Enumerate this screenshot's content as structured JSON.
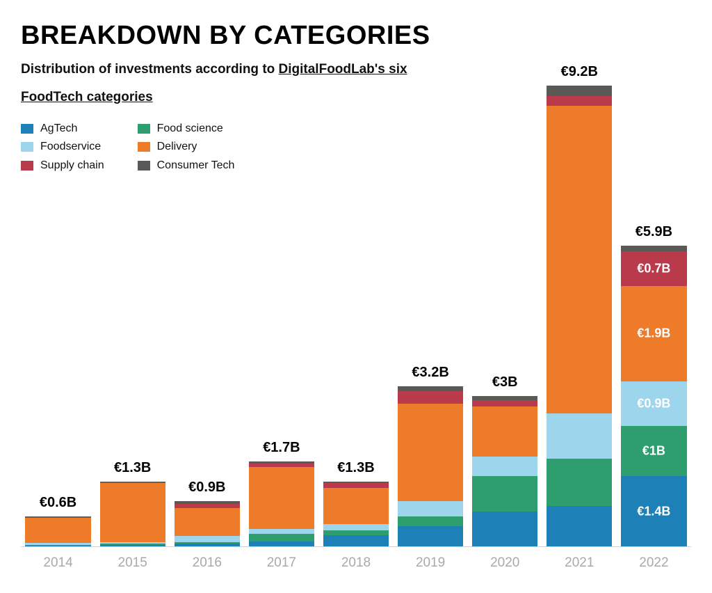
{
  "title": "BREAKDOWN BY CATEGORIES",
  "subtitle_plain": "Distribution of investments according to ",
  "subtitle_link": "DigitalFoodLab's six FoodTech categories",
  "legend_col1": [
    {
      "label": "AgTech",
      "key": "agtech",
      "color": "#1d81b8"
    },
    {
      "label": "Foodservice",
      "key": "foodservice",
      "color": "#9dd5ec"
    },
    {
      "label": "Supply chain",
      "key": "supply_chain",
      "color": "#b83a4b"
    }
  ],
  "legend_col2": [
    {
      "label": "Food science",
      "key": "food_science",
      "color": "#2e9e6f"
    },
    {
      "label": "Delivery",
      "key": "delivery",
      "color": "#ee7b2a"
    },
    {
      "label": "Consumer Tech",
      "key": "consumer_tech",
      "color": "#5b5956"
    }
  ],
  "chart": {
    "type": "stacked-bar",
    "y_max": 9.8,
    "background_color": "#ffffff",
    "axis_line_color": "#d2d2d2",
    "x_label_color": "#a9a9a9",
    "x_label_fontsize": 19,
    "total_label_fontsize": 20,
    "total_label_color": "#000000",
    "segment_label_color": "#ffffff",
    "segment_label_fontsize": 18,
    "bar_width_ratio": 0.88,
    "stack_order_bottom_to_top": [
      "agtech",
      "food_science",
      "foodservice",
      "delivery",
      "supply_chain",
      "consumer_tech"
    ],
    "categories": {
      "agtech": {
        "color": "#1d81b8"
      },
      "food_science": {
        "color": "#2e9e6f"
      },
      "foodservice": {
        "color": "#9dd5ec"
      },
      "delivery": {
        "color": "#ee7b2a"
      },
      "supply_chain": {
        "color": "#b83a4b"
      },
      "consumer_tech": {
        "color": "#5b5956"
      }
    },
    "years": [
      {
        "year": "2014",
        "total_label": "€0.6B",
        "values": {
          "agtech": 0.02,
          "food_science": 0.01,
          "foodservice": 0.04,
          "delivery": 0.51,
          "supply_chain": 0.01,
          "consumer_tech": 0.01
        }
      },
      {
        "year": "2015",
        "total_label": "€1.3B",
        "values": {
          "agtech": 0.03,
          "food_science": 0.02,
          "foodservice": 0.04,
          "delivery": 1.17,
          "supply_chain": 0.02,
          "consumer_tech": 0.02
        }
      },
      {
        "year": "2016",
        "total_label": "€0.9B",
        "values": {
          "agtech": 0.05,
          "food_science": 0.04,
          "foodservice": 0.12,
          "delivery": 0.55,
          "supply_chain": 0.09,
          "consumer_tech": 0.05
        }
      },
      {
        "year": "2017",
        "total_label": "€1.7B",
        "values": {
          "agtech": 0.1,
          "food_science": 0.15,
          "foodservice": 0.1,
          "delivery": 1.24,
          "supply_chain": 0.06,
          "consumer_tech": 0.05
        }
      },
      {
        "year": "2018",
        "total_label": "€1.3B",
        "values": {
          "agtech": 0.22,
          "food_science": 0.1,
          "foodservice": 0.12,
          "delivery": 0.73,
          "supply_chain": 0.09,
          "consumer_tech": 0.04
        }
      },
      {
        "year": "2019",
        "total_label": "€3.2B",
        "values": {
          "agtech": 0.4,
          "food_science": 0.2,
          "foodservice": 0.3,
          "delivery": 1.95,
          "supply_chain": 0.25,
          "consumer_tech": 0.1
        }
      },
      {
        "year": "2020",
        "total_label": "€3B",
        "values": {
          "agtech": 0.7,
          "food_science": 0.7,
          "foodservice": 0.4,
          "delivery": 1.0,
          "supply_chain": 0.12,
          "consumer_tech": 0.08
        }
      },
      {
        "year": "2021",
        "total_label": "€9.2B",
        "values": {
          "agtech": 0.8,
          "food_science": 0.95,
          "foodservice": 0.9,
          "delivery": 6.15,
          "supply_chain": 0.2,
          "consumer_tech": 0.2
        }
      },
      {
        "year": "2022",
        "total_label": "€5.9B",
        "values": {
          "agtech": 1.4,
          "food_science": 1.0,
          "foodservice": 0.9,
          "delivery": 1.9,
          "supply_chain": 0.7,
          "consumer_tech": 0.1
        },
        "segment_labels": {
          "agtech": "€1.4B",
          "food_science": "€1B",
          "foodservice": "€0.9B",
          "delivery": "€1.9B",
          "supply_chain": "€0.7B"
        }
      }
    ]
  }
}
